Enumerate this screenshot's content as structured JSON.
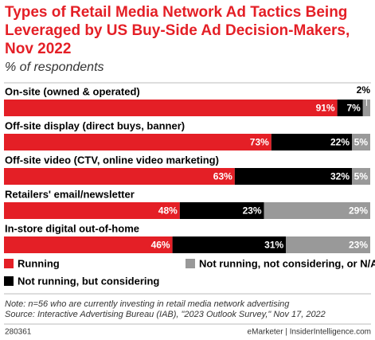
{
  "chart_data": {
    "type": "stacked-bar-horizontal",
    "title": "Types of Retail Media Network Ad Tactics Being Leveraged by US Buy-Side Ad Decision-Makers, Nov 2022",
    "subtitle": "% of respondents",
    "categories": [
      "On-site (owned & operated)",
      "Off-site display (direct buys, banner)",
      "Off-site video (CTV, online video marketing)",
      "Retailers' email/newsletter",
      "In-store digital out-of-home"
    ],
    "xlim": [
      0,
      100
    ],
    "series": [
      {
        "name": "Running",
        "color": "#e41f26",
        "values": [
          91,
          73,
          63,
          48,
          46
        ],
        "value_labels": [
          "91%",
          "73%",
          "63%",
          "48%",
          "46%"
        ]
      },
      {
        "name": "Not running, but considering",
        "color": "#000000",
        "values": [
          7,
          22,
          32,
          23,
          31
        ],
        "value_labels": [
          "7%",
          "22%",
          "32%",
          "23%",
          "31%"
        ]
      },
      {
        "name": "Not running, not considering, or N/A",
        "color": "#999999",
        "values": [
          2,
          5,
          5,
          29,
          23
        ],
        "value_labels": [
          "2%",
          "5%",
          "5%",
          "29%",
          "23%"
        ]
      }
    ],
    "note": "Note: n=56 who are currently investing in retail media network advertising",
    "source": "Source: Interactive Advertising Bureau (IAB), \"2023 Outlook Survey,\" Nov 17, 2022",
    "id": "280361",
    "credit": "eMarketer | InsiderIntelligence.com"
  }
}
